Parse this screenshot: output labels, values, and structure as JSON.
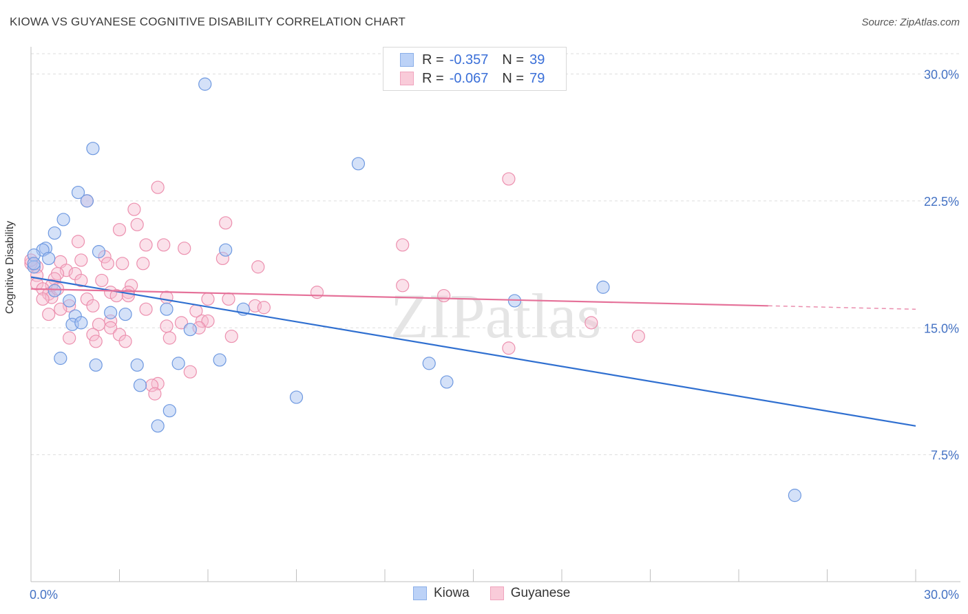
{
  "header": {
    "title": "KIOWA VS GUYANESE COGNITIVE DISABILITY CORRELATION CHART",
    "source": "Source: ZipAtlas.com"
  },
  "legend": {
    "kiowa": {
      "r_label": "R =",
      "r_value": "-0.357",
      "n_label": "N =",
      "n_value": "39"
    },
    "guyanese": {
      "r_label": "R =",
      "r_value": "-0.067",
      "n_label": "N =",
      "n_value": "79"
    }
  },
  "bottom_legend": {
    "kiowa": "Kiowa",
    "guyanese": "Guyanese"
  },
  "watermark": "ZIPatlas",
  "colors": {
    "kiowa_fill": "#a9c4f2",
    "kiowa_stroke": "#6d98e0",
    "kiowa_line": "#2f6fd0",
    "guyanese_fill": "#f7bdd0",
    "guyanese_stroke": "#ec8fae",
    "guyanese_line": "#e57199",
    "tick_text": "#4472c4",
    "grid": "#dddddd"
  },
  "chart_data": {
    "type": "scatter",
    "title": "KIOWA VS GUYANESE COGNITIVE DISABILITY CORRELATION CHART",
    "xlabel": "",
    "ylabel": "Cognitive Disability",
    "xlim": [
      0,
      30
    ],
    "ylim": [
      0,
      31.2
    ],
    "x_tick_labels": [
      "0.0%",
      "30.0%"
    ],
    "y_ticks": [
      7.5,
      15.0,
      22.5,
      30.0
    ],
    "y_tick_labels": [
      "7.5%",
      "15.0%",
      "22.5%",
      "30.0%"
    ],
    "grid": true,
    "legend_position": "top-center",
    "series": [
      {
        "name": "Kiowa",
        "r": -0.357,
        "n": 39,
        "trend": {
          "x": [
            0.0,
            30.0
          ],
          "y": [
            18.0,
            9.2
          ]
        },
        "points": [
          [
            5.9,
            29.4
          ],
          [
            2.1,
            25.6
          ],
          [
            11.1,
            24.7
          ],
          [
            1.6,
            23.0
          ],
          [
            1.9,
            22.5
          ],
          [
            1.1,
            21.4
          ],
          [
            0.8,
            20.6
          ],
          [
            2.3,
            19.5
          ],
          [
            6.6,
            19.6
          ],
          [
            0.5,
            19.7
          ],
          [
            0.4,
            19.6
          ],
          [
            0.1,
            19.3
          ],
          [
            0.6,
            19.1
          ],
          [
            0.1,
            18.6
          ],
          [
            0.1,
            18.8
          ],
          [
            0.8,
            17.2
          ],
          [
            1.3,
            16.6
          ],
          [
            4.6,
            16.1
          ],
          [
            7.2,
            16.1
          ],
          [
            2.7,
            15.9
          ],
          [
            3.2,
            15.8
          ],
          [
            1.5,
            15.7
          ],
          [
            1.4,
            15.2
          ],
          [
            1.7,
            15.3
          ],
          [
            5.4,
            14.9
          ],
          [
            16.4,
            16.6
          ],
          [
            19.4,
            17.4
          ],
          [
            1.0,
            13.2
          ],
          [
            2.2,
            12.8
          ],
          [
            3.6,
            12.8
          ],
          [
            5.0,
            12.9
          ],
          [
            6.4,
            13.1
          ],
          [
            13.5,
            12.9
          ],
          [
            3.7,
            11.6
          ],
          [
            9.0,
            10.9
          ],
          [
            14.1,
            11.8
          ],
          [
            4.7,
            10.1
          ],
          [
            4.3,
            9.2
          ],
          [
            25.9,
            5.1
          ]
        ]
      },
      {
        "name": "Guyanese",
        "r": -0.067,
        "n": 79,
        "trend": {
          "x": [
            0.0,
            25.0
          ],
          "y": [
            17.3,
            16.3
          ]
        },
        "trend_dashed": {
          "x": [
            25.0,
            30.0
          ],
          "y": [
            16.3,
            16.1
          ]
        },
        "points": [
          [
            16.2,
            23.8
          ],
          [
            4.3,
            23.3
          ],
          [
            1.9,
            22.5
          ],
          [
            3.5,
            22.0
          ],
          [
            6.6,
            21.2
          ],
          [
            3.6,
            21.1
          ],
          [
            3.0,
            20.8
          ],
          [
            1.6,
            20.1
          ],
          [
            3.9,
            19.9
          ],
          [
            4.5,
            19.9
          ],
          [
            5.2,
            19.7
          ],
          [
            12.6,
            19.9
          ],
          [
            2.5,
            19.2
          ],
          [
            1.7,
            19.0
          ],
          [
            6.5,
            19.1
          ],
          [
            1.0,
            18.9
          ],
          [
            2.6,
            18.8
          ],
          [
            3.1,
            18.8
          ],
          [
            3.8,
            18.8
          ],
          [
            7.7,
            18.6
          ],
          [
            0.2,
            18.6
          ],
          [
            1.2,
            18.4
          ],
          [
            0.9,
            18.2
          ],
          [
            1.5,
            18.2
          ],
          [
            0.2,
            18.1
          ],
          [
            0.8,
            17.9
          ],
          [
            1.7,
            17.8
          ],
          [
            2.4,
            17.8
          ],
          [
            0.2,
            17.6
          ],
          [
            0.7,
            17.5
          ],
          [
            3.4,
            17.5
          ],
          [
            0.4,
            17.3
          ],
          [
            12.6,
            17.5
          ],
          [
            2.7,
            17.1
          ],
          [
            3.3,
            17.1
          ],
          [
            0.6,
            17.0
          ],
          [
            9.7,
            17.1
          ],
          [
            14.0,
            16.9
          ],
          [
            2.9,
            16.9
          ],
          [
            3.3,
            16.9
          ],
          [
            0.7,
            16.8
          ],
          [
            0.4,
            16.7
          ],
          [
            4.6,
            16.8
          ],
          [
            6.0,
            16.7
          ],
          [
            1.9,
            16.7
          ],
          [
            6.7,
            16.7
          ],
          [
            1.3,
            16.3
          ],
          [
            2.1,
            16.3
          ],
          [
            7.6,
            16.3
          ],
          [
            7.9,
            16.2
          ],
          [
            1.0,
            16.1
          ],
          [
            3.9,
            16.1
          ],
          [
            5.6,
            16.0
          ],
          [
            0.6,
            15.8
          ],
          [
            2.7,
            15.4
          ],
          [
            5.1,
            15.3
          ],
          [
            5.8,
            15.4
          ],
          [
            6.0,
            15.4
          ],
          [
            2.3,
            15.2
          ],
          [
            4.6,
            15.1
          ],
          [
            5.7,
            15.0
          ],
          [
            2.7,
            15.0
          ],
          [
            19.0,
            15.3
          ],
          [
            2.1,
            14.6
          ],
          [
            3.0,
            14.6
          ],
          [
            6.8,
            14.5
          ],
          [
            20.6,
            14.5
          ],
          [
            1.3,
            14.4
          ],
          [
            4.7,
            14.4
          ],
          [
            2.2,
            14.2
          ],
          [
            3.2,
            14.2
          ],
          [
            16.2,
            13.8
          ],
          [
            5.4,
            12.4
          ],
          [
            4.3,
            11.7
          ],
          [
            4.1,
            11.6
          ],
          [
            4.2,
            11.1
          ],
          [
            0.0,
            18.8
          ],
          [
            0.0,
            19.0
          ],
          [
            0.9,
            17.3
          ]
        ]
      }
    ]
  }
}
